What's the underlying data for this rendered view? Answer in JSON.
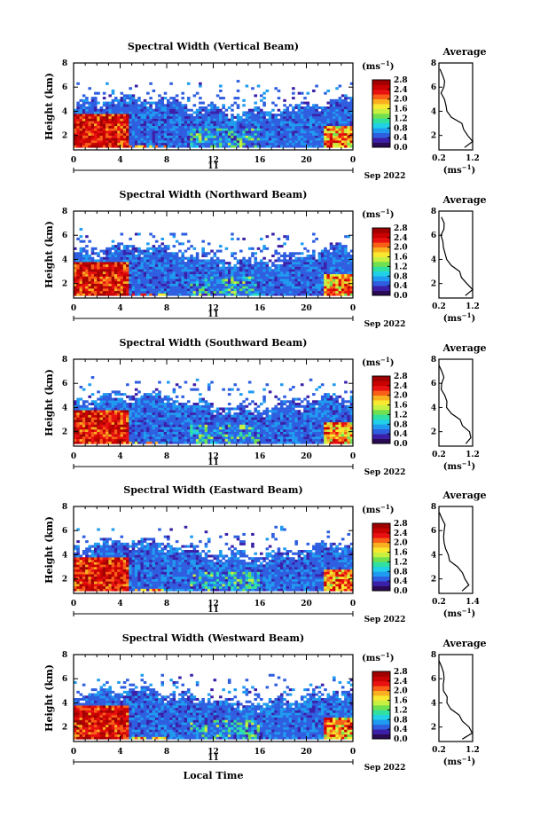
{
  "figure": {
    "xlabel": "Local Time",
    "date_label": "Sep 2022",
    "day_label": "11",
    "x_ticks": [
      "0",
      "4",
      "8",
      "12",
      "16",
      "20",
      "0"
    ],
    "y_ticks": [
      "2",
      "4",
      "6",
      "8"
    ],
    "ylabel": "Height (km)",
    "colorbar_unit": "(ms",
    "colorbar_unit_exp": "−1",
    "colorbar_ticks": [
      "0.0",
      "0.4",
      "0.8",
      "1.2",
      "1.6",
      "2.0",
      "2.4",
      "2.8"
    ],
    "avg_title": "Average",
    "avg_y_ticks": [
      "2",
      "4",
      "6",
      "8"
    ],
    "avg_unit": "(ms",
    "avg_unit_exp": "−1",
    "colorscale": [
      "#2a0a55",
      "#3b1fa8",
      "#2f5fe0",
      "#1f9bf0",
      "#20d0e8",
      "#30e0a0",
      "#70e050",
      "#c8f040",
      "#f8e830",
      "#f8b020",
      "#f86018",
      "#e81010",
      "#c80000",
      "#a00000"
    ]
  },
  "chart_data": [
    {
      "type": "heatmap",
      "title": "Spectral Width (Vertical Beam)",
      "x": {
        "label": "Local Time",
        "range": [
          0,
          24
        ],
        "unit": "hour"
      },
      "y": {
        "label": "Height (km)",
        "range": [
          0.8,
          8.0
        ],
        "ticks": [
          2,
          4,
          6,
          8
        ]
      },
      "colorbar": {
        "range": [
          0.0,
          2.8
        ],
        "unit": "ms⁻¹"
      },
      "average_profile": {
        "xticks": [
          "0.2",
          "1.2"
        ],
        "xrange": [
          0.2,
          1.2
        ],
        "height": [
          1.0,
          1.5,
          2.0,
          2.5,
          3.0,
          3.5,
          4.0,
          4.5,
          5.0,
          5.5,
          6.0,
          6.5,
          7.0,
          7.5
        ],
        "value": [
          0.95,
          1.25,
          1.05,
          0.95,
          0.85,
          0.6,
          0.45,
          0.42,
          0.35,
          0.3,
          0.32,
          0.35,
          0.3,
          0.22
        ]
      }
    },
    {
      "type": "heatmap",
      "title": "Spectral Width (Northward Beam)",
      "x": {
        "label": "Local Time",
        "range": [
          0,
          24
        ],
        "unit": "hour"
      },
      "y": {
        "label": "Height (km)",
        "range": [
          0.8,
          8.0
        ],
        "ticks": [
          2,
          4,
          6,
          8
        ]
      },
      "colorbar": {
        "range": [
          0.0,
          2.8
        ],
        "unit": "ms⁻¹"
      },
      "average_profile": {
        "xticks": [
          "0.2",
          "1.2"
        ],
        "xrange": [
          0.2,
          1.2
        ],
        "height": [
          1.0,
          1.5,
          2.0,
          2.5,
          3.0,
          3.5,
          4.0,
          4.5,
          5.0,
          5.5,
          6.0,
          6.5,
          7.0,
          7.5
        ],
        "value": [
          0.95,
          1.2,
          1.05,
          0.9,
          0.8,
          0.55,
          0.45,
          0.4,
          0.35,
          0.3,
          0.3,
          0.35,
          0.32,
          0.25
        ]
      }
    },
    {
      "type": "heatmap",
      "title": "Spectral Width (Southward Beam)",
      "x": {
        "label": "Local Time",
        "range": [
          0,
          24
        ],
        "unit": "hour"
      },
      "y": {
        "label": "Height (km)",
        "range": [
          0.8,
          8.0
        ],
        "ticks": [
          2,
          4,
          6,
          8
        ]
      },
      "colorbar": {
        "range": [
          0.0,
          2.8
        ],
        "unit": "ms⁻¹"
      },
      "average_profile": {
        "xticks": [
          "0.2",
          "1.2"
        ],
        "xrange": [
          0.2,
          1.2
        ],
        "height": [
          1.0,
          1.5,
          2.0,
          2.5,
          3.0,
          3.5,
          4.0,
          4.5,
          5.0,
          5.5,
          6.0,
          6.5,
          7.0,
          7.5
        ],
        "value": [
          1.0,
          1.15,
          1.1,
          0.9,
          0.8,
          0.55,
          0.45,
          0.4,
          0.35,
          0.3,
          0.32,
          0.34,
          0.3,
          0.2
        ]
      }
    },
    {
      "type": "heatmap",
      "title": "Spectral Width (Eastward Beam)",
      "x": {
        "label": "Local Time",
        "range": [
          0,
          24
        ],
        "unit": "hour"
      },
      "y": {
        "label": "Height (km)",
        "range": [
          0.8,
          8.0
        ],
        "ticks": [
          2,
          4,
          6,
          8
        ]
      },
      "colorbar": {
        "range": [
          0.0,
          2.8
        ],
        "unit": "ms⁻¹"
      },
      "average_profile": {
        "xticks": [
          "0.2",
          "1.4"
        ],
        "xrange": [
          0.2,
          1.4
        ],
        "height": [
          1.0,
          1.5,
          2.0,
          2.5,
          3.0,
          3.5,
          4.0,
          4.5,
          5.0,
          5.5,
          6.0,
          6.5,
          7.0,
          7.5
        ],
        "value": [
          1.05,
          1.3,
          1.15,
          1.0,
          0.85,
          0.6,
          0.5,
          0.45,
          0.4,
          0.35,
          0.36,
          0.38,
          0.32,
          0.22
        ]
      }
    },
    {
      "type": "heatmap",
      "title": "Spectral Width (Westward Beam)",
      "x": {
        "label": "Local Time",
        "range": [
          0,
          24
        ],
        "unit": "hour"
      },
      "y": {
        "label": "Height (km)",
        "range": [
          0.8,
          8.0
        ],
        "ticks": [
          2,
          4,
          6,
          8
        ]
      },
      "colorbar": {
        "range": [
          0.0,
          2.8
        ],
        "unit": "ms⁻¹"
      },
      "average_profile": {
        "xticks": [
          "0.2",
          "1.2"
        ],
        "xrange": [
          0.2,
          1.2
        ],
        "height": [
          1.0,
          1.5,
          2.0,
          2.5,
          3.0,
          3.5,
          4.0,
          4.5,
          5.0,
          5.5,
          6.0,
          6.5,
          7.0,
          7.5
        ],
        "value": [
          0.9,
          1.2,
          1.1,
          0.9,
          0.8,
          0.55,
          0.45,
          0.42,
          0.35,
          0.3,
          0.32,
          0.34,
          0.3,
          0.2
        ]
      }
    }
  ]
}
